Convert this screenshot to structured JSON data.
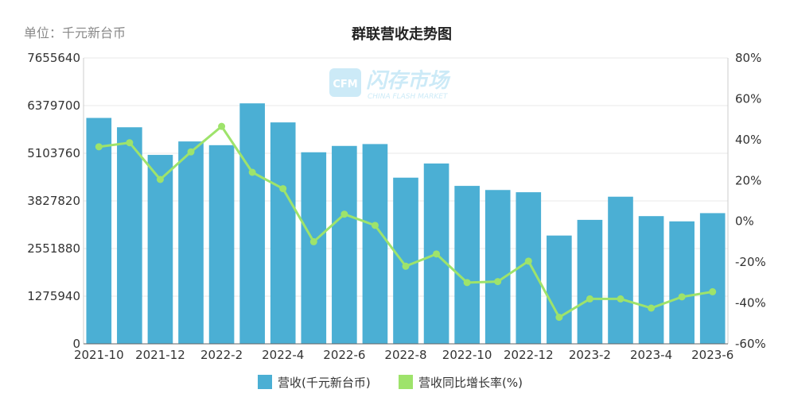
{
  "header": {
    "unit_label": "单位：千元新台币"
  },
  "watermark": {
    "badge": "CFM",
    "name": "闪存市场",
    "sub": "CHINA FLASH MARKET"
  },
  "chart_data": {
    "type": "bar",
    "title": "群联营收走势图",
    "categories": [
      "2021-10",
      "2021-11",
      "2021-12",
      "2022-1",
      "2022-2",
      "2022-3",
      "2022-4",
      "2022-5",
      "2022-6",
      "2022-7",
      "2022-8",
      "2022-9",
      "2022-10",
      "2022-11",
      "2022-12",
      "2023-1",
      "2023-2",
      "2023-3",
      "2023-4",
      "2023-5",
      "2023-6"
    ],
    "x_tick_labels": [
      "2021-10",
      "",
      "2021-12",
      "",
      "2022-2",
      "",
      "2022-4",
      "",
      "2022-6",
      "",
      "2022-8",
      "",
      "2022-10",
      "",
      "2022-12",
      "",
      "2023-2",
      "",
      "2023-4",
      "",
      "2023-6"
    ],
    "series": [
      {
        "name": "营收(千元新台币)",
        "type": "bar",
        "axis": "left",
        "color": "#4bafd4",
        "values": [
          6050000,
          5800000,
          5060000,
          5420000,
          5320000,
          6440000,
          5930000,
          5130000,
          5300000,
          5350000,
          4450000,
          4830000,
          4230000,
          4120000,
          4060000,
          2900000,
          3320000,
          3940000,
          3420000,
          3280000,
          3500000
        ]
      },
      {
        "name": "营收同比增长率(%)",
        "type": "line",
        "axis": "right",
        "color": "#9ee36b",
        "values": [
          36.5,
          38.5,
          20.5,
          34,
          46.5,
          24,
          16,
          -10,
          3.5,
          -2,
          -22,
          -16,
          -30,
          -29.5,
          -19.5,
          -47,
          -38,
          -38,
          -42.5,
          -37,
          -34.5
        ]
      }
    ],
    "y_left": {
      "lim": [
        0,
        7655640
      ],
      "ticks": [
        0,
        1275940,
        2551880,
        3827820,
        5103760,
        6379700,
        7655640
      ],
      "tick_labels": [
        "0",
        "1275940",
        "2551880",
        "3827820",
        "5103760",
        "6379700",
        "7655640"
      ]
    },
    "y_right": {
      "lim": [
        -60,
        80
      ],
      "ticks": [
        -60,
        -40,
        -20,
        0,
        20,
        40,
        60,
        80
      ],
      "tick_labels": [
        "-60%",
        "-40%",
        "-20%",
        "0%",
        "20%",
        "40%",
        "60%",
        "80%"
      ]
    },
    "grid": true,
    "legend_position": "bottom"
  }
}
